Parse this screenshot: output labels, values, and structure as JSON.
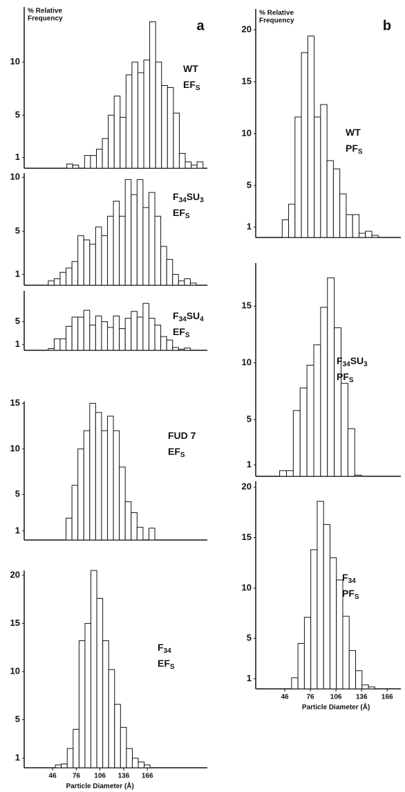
{
  "chart_data": [
    {
      "type": "histogram",
      "panel": "a",
      "ylabel": [
        "% Relative",
        "Frequency"
      ],
      "label": [
        [
          {
            "text": "WT",
            "sub": false
          }
        ],
        [
          {
            "text": "EF",
            "sub": false
          },
          {
            "text": "S",
            "sub": true
          }
        ]
      ],
      "xlim": [
        0,
        232
      ],
      "ylim": [
        0,
        15.2
      ],
      "yticks": [
        1,
        5,
        10
      ],
      "bins": [
        54,
        61.5,
        69,
        76.5,
        84,
        91.5,
        99,
        106.5,
        114,
        121.5,
        129,
        136.5,
        144,
        151.5,
        159,
        166.5,
        174,
        181.5,
        189,
        196.5,
        204,
        211.5,
        219,
        226.5
      ],
      "values": [
        0.4,
        0.3,
        0,
        1.2,
        1.2,
        1.8,
        2.8,
        5,
        6.8,
        4.8,
        8.8,
        10,
        9,
        10.2,
        13.8,
        10,
        7.8,
        7.6,
        5.2,
        1.4,
        0.6,
        0.3,
        0.6
      ]
    },
    {
      "type": "histogram",
      "label": [
        [
          {
            "text": "F",
            "sub": false
          },
          {
            "text": "34",
            "sub": true
          },
          {
            "text": "SU",
            "sub": false
          },
          {
            "text": "3",
            "sub": true
          }
        ],
        [
          {
            "text": "EF",
            "sub": false
          },
          {
            "text": "S",
            "sub": true
          }
        ]
      ],
      "xlim": [
        10,
        242
      ],
      "ylim": [
        0,
        10.4
      ],
      "yticks": [
        1,
        5,
        10
      ],
      "bins": [
        40.5,
        48,
        55.5,
        63,
        70.5,
        78,
        85.5,
        93,
        100.5,
        108,
        115.5,
        123,
        130.5,
        138,
        145.5,
        153,
        160.5,
        168,
        175.5,
        183,
        190.5,
        198,
        205.5,
        213,
        220.5,
        228
      ],
      "values": [
        0.4,
        0.6,
        1.2,
        1.6,
        2.2,
        4.6,
        4.2,
        3.8,
        5.4,
        4.6,
        6.4,
        7.8,
        6.4,
        9.8,
        8.4,
        9.8,
        7.2,
        8.6,
        6.4,
        3.6,
        2.4,
        1.0,
        0.4,
        0.6,
        0.2
      ]
    },
    {
      "type": "histogram",
      "label": [
        [
          {
            "text": "F",
            "sub": false
          },
          {
            "text": "34",
            "sub": true
          },
          {
            "text": "SU",
            "sub": false
          },
          {
            "text": "4",
            "sub": true
          }
        ],
        [
          {
            "text": "EF",
            "sub": false
          },
          {
            "text": "S",
            "sub": true
          }
        ]
      ],
      "xlim": [
        10,
        242
      ],
      "ylim": [
        0,
        10.4
      ],
      "yticks": [
        1,
        5
      ],
      "bins": [
        40.5,
        48,
        55.5,
        63,
        70.5,
        78,
        85.5,
        93,
        100.5,
        108,
        115.5,
        123,
        130.5,
        138,
        145.5,
        153,
        160.5,
        168,
        175.5,
        183,
        190.5,
        198,
        205.5,
        213,
        220.5
      ],
      "values": [
        0.3,
        2,
        2,
        4.2,
        5.8,
        5.8,
        7,
        4.4,
        6,
        5,
        4,
        6,
        3.8,
        5.6,
        6.8,
        5.8,
        8.2,
        5.6,
        4.4,
        2.4,
        1.8,
        0.5,
        0.2,
        0.4
      ]
    },
    {
      "type": "histogram",
      "label": [
        [
          {
            "text": "FUD 7",
            "sub": false
          }
        ],
        [
          {
            "text": "EF",
            "sub": false
          },
          {
            "text": "S",
            "sub": true
          }
        ]
      ],
      "xlim": [
        10,
        242
      ],
      "ylim": [
        0,
        15.2
      ],
      "yticks": [
        1,
        5,
        10,
        15
      ],
      "bins": [
        63,
        70.5,
        78,
        85.5,
        93,
        100.5,
        108,
        115.5,
        123,
        130.5,
        138,
        145.5,
        153,
        160.5,
        168,
        175.5
      ],
      "values": [
        2.4,
        6,
        10,
        12,
        15,
        14,
        12,
        13.6,
        12,
        8,
        4.2,
        3,
        1.4,
        0,
        1.3
      ]
    },
    {
      "type": "histogram",
      "xlabel": "Particle Diameter (Å)",
      "label": [
        [
          {
            "text": "F",
            "sub": false
          },
          {
            "text": "34",
            "sub": true
          }
        ],
        [
          {
            "text": "EF",
            "sub": false
          },
          {
            "text": "S",
            "sub": true
          }
        ]
      ],
      "xlim": [
        10,
        242
      ],
      "ylim": [
        0,
        20.5
      ],
      "yticks": [
        1,
        5,
        10,
        15,
        20
      ],
      "xticks": [
        46,
        76,
        106,
        136,
        166
      ],
      "bins": [
        49.5,
        57,
        64.5,
        72,
        79.5,
        87,
        94.5,
        102,
        109.5,
        117,
        124.5,
        132,
        139.5,
        147,
        154.5,
        162,
        169.5
      ],
      "values": [
        0.3,
        0.4,
        2,
        4,
        13.2,
        15,
        20.5,
        17.6,
        13.2,
        10.2,
        6.6,
        4.2,
        2,
        1,
        0.6,
        0.3
      ]
    },
    {
      "type": "histogram",
      "panel": "b",
      "ylabel": [
        "% Relative",
        "Frequency"
      ],
      "label": [
        [
          {
            "text": "WT",
            "sub": false
          }
        ],
        [
          {
            "text": "PF",
            "sub": false
          },
          {
            "text": "S",
            "sub": true
          }
        ]
      ],
      "xlim": [
        12,
        182
      ],
      "ylim": [
        0,
        22
      ],
      "yticks": [
        1,
        5,
        10,
        15,
        20
      ],
      "bins": [
        43,
        50.5,
        58,
        65.5,
        73,
        80.5,
        88,
        95.5,
        103,
        110.5,
        118,
        125.5,
        133,
        140.5,
        148,
        155.5
      ],
      "values": [
        1.7,
        3.2,
        11.6,
        17.8,
        19.4,
        11.6,
        12.8,
        7.4,
        6.6,
        4.2,
        2.2,
        2.2,
        0.4,
        0.6,
        0.2
      ]
    },
    {
      "type": "histogram",
      "label": [
        [
          {
            "text": "F",
            "sub": false
          },
          {
            "text": "34",
            "sub": true
          },
          {
            "text": "SU",
            "sub": false
          },
          {
            "text": "3",
            "sub": true
          }
        ],
        [
          {
            "text": "PF",
            "sub": false
          },
          {
            "text": "S",
            "sub": true
          }
        ]
      ],
      "xlim": [
        12,
        182
      ],
      "ylim": [
        0,
        18.8
      ],
      "yticks": [
        1,
        5,
        10,
        15
      ],
      "bins": [
        40,
        48,
        56,
        64,
        72,
        80,
        88,
        96,
        104,
        112,
        120,
        128,
        136
      ],
      "values": [
        0.5,
        0.5,
        5.8,
        7.8,
        9.8,
        11.6,
        14.9,
        17.5,
        13.1,
        8.2,
        4.2,
        0.1
      ]
    },
    {
      "type": "histogram",
      "xlabel": "Particle Diameter (Å)",
      "label": [
        [
          {
            "text": "F",
            "sub": false
          },
          {
            "text": "34",
            "sub": true
          }
        ],
        [
          {
            "text": "PF",
            "sub": false
          },
          {
            "text": "S",
            "sub": true
          }
        ]
      ],
      "xlim": [
        12,
        182
      ],
      "ylim": [
        0,
        20.6
      ],
      "yticks": [
        1,
        5,
        10,
        15,
        20
      ],
      "xticks": [
        46,
        76,
        106,
        136,
        166
      ],
      "bins": [
        54,
        61.5,
        69,
        76.5,
        84,
        91.5,
        99,
        106.5,
        114,
        121.5,
        129,
        136.5,
        144,
        151.5
      ],
      "values": [
        1.1,
        4.5,
        7.1,
        13.8,
        18.6,
        16.3,
        13,
        10.8,
        7.2,
        3.8,
        1.8,
        0.4,
        0.2
      ]
    }
  ]
}
